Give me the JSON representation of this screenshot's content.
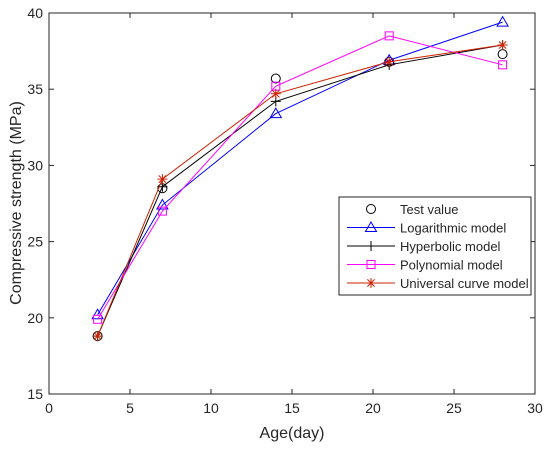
{
  "chart_data": {
    "type": "line",
    "title": "",
    "xlabel": "Age(day)",
    "ylabel": "Compressive strength (MPa)",
    "xlim": [
      0,
      30
    ],
    "ylim": [
      15,
      40
    ],
    "xticks": [
      0,
      5,
      10,
      15,
      20,
      25,
      30
    ],
    "yticks": [
      15,
      20,
      25,
      30,
      35,
      40
    ],
    "grid": false,
    "legend_position": "lower-right",
    "series": [
      {
        "name": "Test value",
        "color": "#000000",
        "marker": "circle",
        "line": false,
        "x": [
          3,
          7,
          14,
          21,
          28
        ],
        "y": [
          18.8,
          28.5,
          35.7,
          36.8,
          37.3
        ]
      },
      {
        "name": "Logarithmic model",
        "color": "#0000ff",
        "marker": "triangle",
        "line": true,
        "x": [
          3,
          7,
          14,
          21,
          28
        ],
        "y": [
          20.2,
          27.4,
          33.4,
          36.9,
          39.4
        ]
      },
      {
        "name": "Hyperbolic model",
        "color": "#000000",
        "marker": "plus",
        "line": true,
        "x": [
          3,
          7,
          14,
          21,
          28
        ],
        "y": [
          18.8,
          28.6,
          34.2,
          36.6,
          37.9
        ]
      },
      {
        "name": "Polynomial model",
        "color": "#ff00ff",
        "marker": "square",
        "line": true,
        "x": [
          3,
          7,
          14,
          21,
          28
        ],
        "y": [
          19.9,
          27.0,
          35.2,
          38.5,
          36.6
        ]
      },
      {
        "name": "Universal curve model",
        "color": "#cc2200",
        "marker": "asterisk",
        "line": true,
        "x": [
          3,
          7,
          14,
          21,
          28
        ],
        "y": [
          18.8,
          29.1,
          34.7,
          36.8,
          37.9
        ]
      }
    ]
  }
}
